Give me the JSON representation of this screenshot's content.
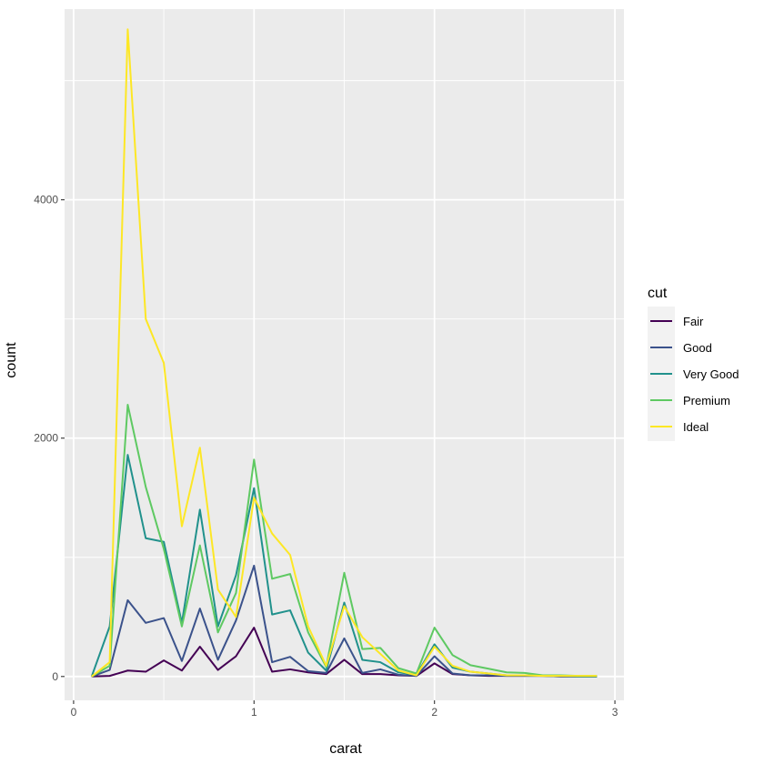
{
  "chart_data": {
    "type": "line",
    "xlabel": "carat",
    "ylabel": "count",
    "xlim": [
      -0.05,
      3.05
    ],
    "ylim": [
      -200,
      5600
    ],
    "x_ticks": [
      0,
      1,
      2,
      3
    ],
    "x_tick_labels": [
      "0",
      "1",
      "2",
      "3"
    ],
    "y_ticks": [
      0,
      2000,
      4000
    ],
    "y_tick_labels": [
      "0",
      "2000",
      "4000"
    ],
    "grid": true,
    "background": "#ebebeb",
    "gridline_color": "#ffffff",
    "legend": {
      "title": "cut",
      "position": "right"
    },
    "x": [
      0.1,
      0.2,
      0.3,
      0.4,
      0.5,
      0.6,
      0.7,
      0.8,
      0.9,
      1.0,
      1.1,
      1.2,
      1.3,
      1.4,
      1.5,
      1.6,
      1.7,
      1.8,
      1.9,
      2.0,
      2.1,
      2.2,
      2.3,
      2.4,
      2.5,
      2.6,
      2.7,
      2.8,
      2.9
    ],
    "series": [
      {
        "name": "Fair",
        "color": "#440154",
        "values": [
          0,
          5,
          50,
          40,
          135,
          50,
          250,
          55,
          170,
          410,
          40,
          60,
          35,
          20,
          140,
          20,
          20,
          10,
          5,
          110,
          20,
          10,
          5,
          5,
          5,
          5,
          0,
          0,
          0
        ]
      },
      {
        "name": "Good",
        "color": "#3b528b",
        "values": [
          0,
          55,
          640,
          450,
          490,
          130,
          570,
          140,
          470,
          930,
          120,
          165,
          45,
          30,
          320,
          30,
          60,
          15,
          5,
          170,
          25,
          10,
          10,
          5,
          5,
          5,
          0,
          0,
          0
        ]
      },
      {
        "name": "Very Good",
        "color": "#21918c",
        "values": [
          0,
          420,
          1860,
          1160,
          1130,
          450,
          1400,
          420,
          850,
          1580,
          520,
          555,
          200,
          50,
          620,
          140,
          120,
          35,
          15,
          270,
          75,
          40,
          25,
          10,
          10,
          5,
          5,
          0,
          0
        ]
      },
      {
        "name": "Premium",
        "color": "#5ec962",
        "values": [
          0,
          90,
          2280,
          1590,
          1070,
          420,
          1100,
          370,
          700,
          1820,
          820,
          860,
          370,
          80,
          870,
          230,
          240,
          70,
          25,
          410,
          180,
          95,
          65,
          35,
          30,
          10,
          10,
          5,
          5
        ]
      },
      {
        "name": "Ideal",
        "color": "#fde725",
        "values": [
          0,
          120,
          5430,
          3000,
          2630,
          1260,
          1920,
          730,
          500,
          1500,
          1200,
          1020,
          420,
          90,
          590,
          330,
          190,
          50,
          10,
          250,
          90,
          40,
          25,
          10,
          10,
          5,
          5,
          5,
          5
        ]
      }
    ]
  }
}
